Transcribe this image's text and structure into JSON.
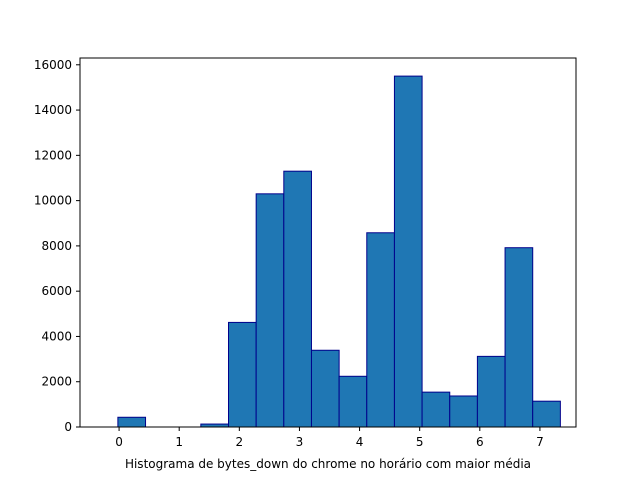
{
  "chart_data": {
    "type": "bar",
    "title": "",
    "xlabel": "Histograma de bytes_down do chrome no horário com maior média",
    "ylabel": "",
    "xlim": [
      -0.65,
      7.6
    ],
    "ylim": [
      0,
      16300
    ],
    "xticks": [
      0,
      1,
      2,
      3,
      4,
      5,
      6,
      7
    ],
    "yticks": [
      0,
      2000,
      4000,
      6000,
      8000,
      10000,
      12000,
      14000,
      16000
    ],
    "bins": [
      {
        "x0": -0.48,
        "x1": -0.02,
        "value": 0
      },
      {
        "x0": -0.02,
        "x1": 0.44,
        "value": 430
      },
      {
        "x0": 0.44,
        "x1": 0.9,
        "value": 0
      },
      {
        "x0": 0.9,
        "x1": 1.36,
        "value": 0
      },
      {
        "x0": 1.36,
        "x1": 1.82,
        "value": 130
      },
      {
        "x0": 1.82,
        "x1": 2.28,
        "value": 4620
      },
      {
        "x0": 2.28,
        "x1": 2.74,
        "value": 10300
      },
      {
        "x0": 2.74,
        "x1": 3.2,
        "value": 11300
      },
      {
        "x0": 3.2,
        "x1": 3.66,
        "value": 3390
      },
      {
        "x0": 3.66,
        "x1": 4.12,
        "value": 2240
      },
      {
        "x0": 4.12,
        "x1": 4.58,
        "value": 8580
      },
      {
        "x0": 4.58,
        "x1": 5.04,
        "value": 15500
      },
      {
        "x0": 5.04,
        "x1": 5.5,
        "value": 1540
      },
      {
        "x0": 5.5,
        "x1": 5.96,
        "value": 1370
      },
      {
        "x0": 5.96,
        "x1": 6.42,
        "value": 3120
      },
      {
        "x0": 6.42,
        "x1": 6.88,
        "value": 7920
      },
      {
        "x0": 6.88,
        "x1": 7.34,
        "value": 1140
      }
    ],
    "colors": {
      "bar_fill": "#1f77b4",
      "bar_edge": "#00008b",
      "axes": "#000000"
    },
    "grid": false,
    "legend": "none"
  }
}
